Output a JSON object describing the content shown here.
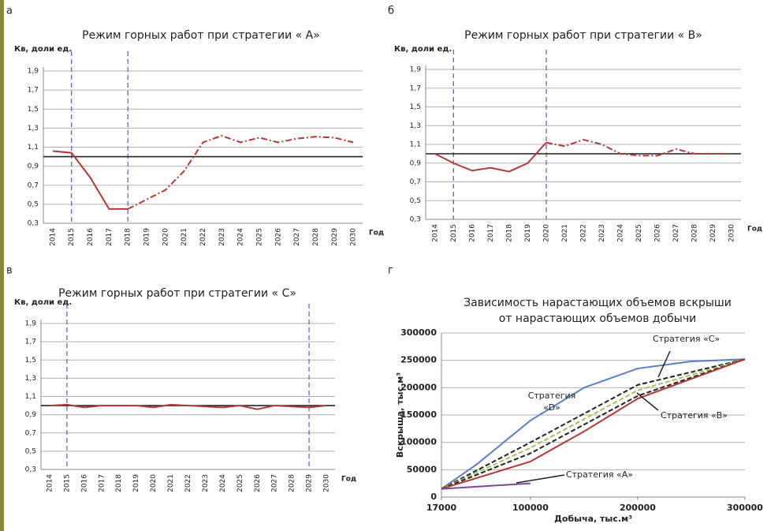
{
  "chart_data": [
    {
      "type": "line",
      "letter": "а",
      "title": "Режим  горных работ при стратегии « А»",
      "ylabel": "Кв, доли ед.",
      "xlabel": "Год",
      "categories": [
        "2014",
        "2015",
        "2016",
        "2017",
        "2018",
        "2019",
        "2020",
        "2021",
        "2022",
        "2023",
        "2024",
        "2025",
        "2026",
        "2027",
        "2028",
        "2029",
        "2030"
      ],
      "series": [
        {
          "color": "#b03a3a",
          "style": "solid",
          "values": [
            1.06,
            1.04,
            0.78,
            0.45,
            0.45,
            null,
            null,
            null,
            null,
            null,
            null,
            null,
            null,
            null,
            null,
            null,
            null
          ]
        },
        {
          "color": "#b03a3a",
          "style": "dashdot",
          "values": [
            null,
            null,
            null,
            null,
            0.45,
            0.55,
            0.65,
            0.85,
            1.15,
            1.22,
            1.15,
            1.2,
            1.15,
            1.19,
            1.21,
            1.2,
            1.15
          ]
        }
      ],
      "hline": 1,
      "vlines": [
        "2015",
        "2018"
      ],
      "ylim": [
        0.3,
        1.9
      ],
      "yticks": [
        {
          "value": 0.3,
          "label": "0,3"
        },
        {
          "value": 0.5,
          "label": "0,5"
        },
        {
          "value": 0.7,
          "label": "0,7"
        },
        {
          "value": 0.9,
          "label": "0,9"
        },
        {
          "value": 1.1,
          "label": "1,1"
        },
        {
          "value": 1.3,
          "label": "1,3"
        },
        {
          "value": 1.5,
          "label": "1,5"
        },
        {
          "value": 1.7,
          "label": "1,7"
        },
        {
          "value": 1.9,
          "label": "1,9"
        }
      ],
      "grid": true
    },
    {
      "type": "line",
      "letter": "б",
      "title": "Режим  горных работ при стратегии « В»",
      "ylabel": "Кв, доли ед.",
      "xlabel": "Год",
      "categories": [
        "2014",
        "2015",
        "2016",
        "2017",
        "2018",
        "2019",
        "2020",
        "2021",
        "2022",
        "2023",
        "2024",
        "2025",
        "2026",
        "2027",
        "2028",
        "2029",
        "2030"
      ],
      "series": [
        {
          "color": "#b03a3a",
          "style": "solid",
          "values": [
            1.0,
            0.9,
            0.82,
            0.85,
            0.81,
            0.9,
            1.12,
            null,
            null,
            null,
            null,
            null,
            null,
            null,
            null,
            null,
            null
          ]
        },
        {
          "color": "#b03a3a",
          "style": "dashdot",
          "values": [
            null,
            null,
            null,
            null,
            null,
            null,
            1.12,
            1.08,
            1.15,
            1.1,
            1.0,
            0.98,
            0.98,
            1.05,
            1.0,
            1.0,
            1.0
          ]
        }
      ],
      "hline": 1,
      "vlines": [
        "2015",
        "2020"
      ],
      "ylim": [
        0.3,
        1.9
      ],
      "yticks": [
        {
          "value": 0.3,
          "label": "0,3"
        },
        {
          "value": 0.5,
          "label": "0,5"
        },
        {
          "value": 0.7,
          "label": "0,7"
        },
        {
          "value": 0.9,
          "label": "0,9"
        },
        {
          "value": 1.1,
          "label": "1,1"
        },
        {
          "value": 1.3,
          "label": "1,3"
        },
        {
          "value": 1.5,
          "label": "1,5"
        },
        {
          "value": 1.7,
          "label": "1,7"
        },
        {
          "value": 1.9,
          "label": "1,9"
        }
      ],
      "grid": true
    },
    {
      "type": "line",
      "letter": "в",
      "title": "Режим  горных работ при стратегии « С»",
      "ylabel": "Кв, доли ед.",
      "xlabel": "Год",
      "categories": [
        "2014",
        "2015",
        "2016",
        "2017",
        "2018",
        "2019",
        "2020",
        "2021",
        "2022",
        "2023",
        "2024",
        "2025",
        "2026",
        "2027",
        "2028",
        "2029",
        "2030"
      ],
      "series": [
        {
          "color": "#b03a3a",
          "style": "solid",
          "values": [
            1.0,
            1.01,
            0.98,
            1.0,
            1.0,
            1.0,
            0.98,
            1.01,
            1.0,
            0.99,
            0.98,
            1.0,
            0.96,
            1.0,
            0.99,
            0.98,
            1.0
          ]
        }
      ],
      "hline": 1,
      "vlines": [
        "2015",
        "2029"
      ],
      "ylim": [
        0.3,
        1.9
      ],
      "yticks": [
        {
          "value": 0.3,
          "label": "0,3"
        },
        {
          "value": 0.5,
          "label": "0,5"
        },
        {
          "value": 0.7,
          "label": "0,7"
        },
        {
          "value": 0.9,
          "label": "0,9"
        },
        {
          "value": 1.1,
          "label": "1,1"
        },
        {
          "value": 1.3,
          "label": "1,3"
        },
        {
          "value": 1.5,
          "label": "1,5"
        },
        {
          "value": 1.7,
          "label": "1,7"
        },
        {
          "value": 1.9,
          "label": "1,9"
        }
      ],
      "grid": true
    },
    {
      "type": "xyline",
      "letter": "г",
      "title": [
        "Зависимость  нарастающих  объемов  вскрыши",
        "от нарастающих  объемов  добычи"
      ],
      "ylabel": "Вскрыша, тыс.м³",
      "xlabel": "Добыча, тыс.м³",
      "series": [
        {
          "color": "#5b7fc0",
          "style": "solid",
          "x": [
            17000,
            50000,
            100000,
            150000,
            200000,
            250000,
            300000
          ],
          "values": [
            15000,
            60000,
            140000,
            200000,
            235000,
            248000,
            252000
          ]
        },
        {
          "color": "#222222",
          "style": "dashed",
          "x": [
            17000,
            100000,
            200000,
            300000
          ],
          "values": [
            15000,
            100000,
            205000,
            252000
          ]
        },
        {
          "color": "#a8c060",
          "style": "dashed",
          "x": [
            17000,
            100000,
            200000,
            300000
          ],
          "values": [
            15000,
            90000,
            195000,
            252000
          ]
        },
        {
          "color": "#222222",
          "style": "dashed",
          "x": [
            17000,
            100000,
            200000,
            300000
          ],
          "values": [
            15000,
            80000,
            185000,
            252000
          ]
        },
        {
          "color": "#b03a3a",
          "style": "solid",
          "x": [
            17000,
            100000,
            150000,
            200000,
            300000
          ],
          "values": [
            15000,
            65000,
            120000,
            180000,
            252000
          ]
        },
        {
          "color": "#7a4a9a",
          "style": "solid",
          "x": [
            17000,
            100000
          ],
          "values": [
            15000,
            25000
          ]
        }
      ],
      "annotations": [
        {
          "lines": [
            "Стратегия «С»"
          ]
        },
        {
          "lines": [
            "Стратегия",
            "«D»"
          ]
        },
        {
          "lines": [
            "Стратегия «В»"
          ]
        },
        {
          "lines": [
            "Стратегия «А»"
          ]
        }
      ],
      "xlim": [
        17000,
        300000
      ],
      "xticks": [
        17000,
        100000,
        200000,
        300000
      ],
      "ylim": [
        0,
        300000
      ],
      "yticks": [
        0,
        50000,
        100000,
        150000,
        200000,
        250000,
        300000
      ],
      "grid": true
    }
  ]
}
